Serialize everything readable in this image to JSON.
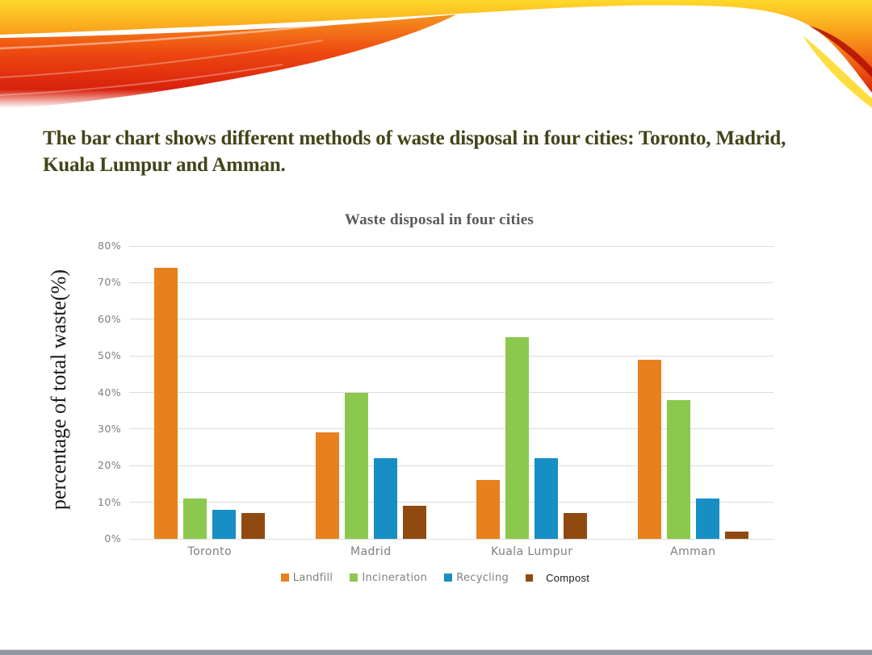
{
  "slide": {
    "title": "The bar chart shows different methods of waste disposal in four cities: Toronto, Madrid, Kuala Lumpur and Amman.",
    "title_color": "#434419"
  },
  "chart_data": {
    "type": "bar",
    "title": "Waste disposal in four cities",
    "xlabel": "",
    "ylabel": "percentage of total waste(%)",
    "categories": [
      "Toronto",
      "Madrid",
      "Kuala Lumpur",
      "Amman"
    ],
    "series": [
      {
        "name": "Landfill",
        "color": "#e8801e",
        "legend_text_color": "#7f7f7f",
        "values": [
          74,
          29,
          16,
          49
        ]
      },
      {
        "name": "Incineration",
        "color": "#8cc84d",
        "legend_text_color": "#7f7f7f",
        "values": [
          11,
          40,
          55,
          38
        ]
      },
      {
        "name": "Recycling",
        "color": "#178fc4",
        "legend_text_color": "#7f7f7f",
        "values": [
          8,
          22,
          22,
          11
        ]
      },
      {
        "name": "Compost",
        "color": "#904a10",
        "legend_text_color": "#1a1a1a",
        "values": [
          7,
          9,
          7,
          2
        ]
      }
    ],
    "ylim": [
      0,
      80
    ],
    "y_ticks": [
      "0%",
      "10%",
      "20%",
      "30%",
      "40%",
      "50%",
      "60%",
      "70%",
      "80%"
    ],
    "grid": true,
    "legend_position": "bottom",
    "title_color": "#595959",
    "tick_color": "#7f7f7f",
    "gridline_color": "#dcdcdc"
  }
}
